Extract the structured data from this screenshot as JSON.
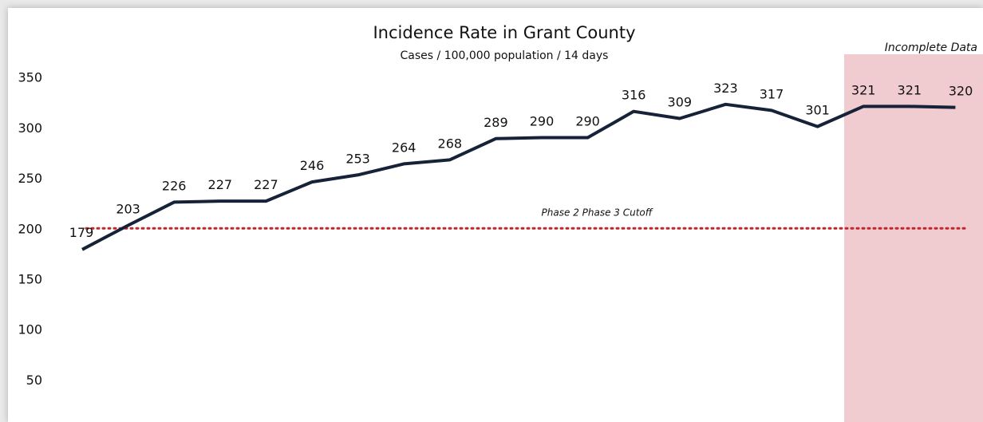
{
  "chart_data": {
    "type": "line",
    "title": "Incidence Rate in Grant County",
    "subtitle": "Cases / 100,000 population / 14 days",
    "xlabel": "",
    "ylabel": "",
    "ylim": [
      0,
      350
    ],
    "yticks": [
      50,
      100,
      150,
      200,
      250,
      300,
      350
    ],
    "grid": false,
    "values": [
      179,
      203,
      226,
      227,
      227,
      246,
      253,
      264,
      268,
      289,
      290,
      290,
      316,
      309,
      323,
      317,
      301,
      321,
      321,
      320
    ],
    "threshold": {
      "value": 200,
      "label": "Phase 2 Phase 3 Cutoff"
    },
    "shaded_region": {
      "label": "Incomplete Data",
      "from_index": 17,
      "to_index": 19
    },
    "colors": {
      "line": "#152238",
      "threshold": "#c0282d",
      "shade": "#f0cbd0"
    }
  }
}
